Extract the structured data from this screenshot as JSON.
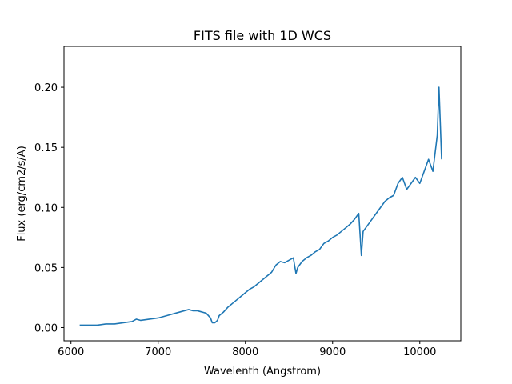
{
  "chart_data": {
    "type": "line",
    "title": "FITS file with 1D WCS",
    "xlabel": "Wavelenth (Angstrom)",
    "ylabel": "Flux (erg/cm2/s/A)",
    "xlim": [
      5920,
      10470
    ],
    "ylim": [
      -0.011,
      0.234
    ],
    "xticks": [
      6000,
      7000,
      8000,
      9000,
      10000
    ],
    "xtick_labels": [
      "6000",
      "7000",
      "8000",
      "9000",
      "10000"
    ],
    "yticks": [
      0.0,
      0.05,
      0.1,
      0.15,
      0.2
    ],
    "ytick_labels": [
      "0.00",
      "0.05",
      "0.10",
      "0.15",
      "0.20"
    ],
    "grid": false,
    "legend": "none",
    "series": [
      {
        "color": "#1f77b4",
        "x": [
          6100,
          6200,
          6300,
          6400,
          6500,
          6600,
          6700,
          6750,
          6800,
          6900,
          7000,
          7100,
          7200,
          7300,
          7350,
          7400,
          7450,
          7500,
          7550,
          7600,
          7620,
          7650,
          7680,
          7700,
          7750,
          7800,
          7850,
          7900,
          7950,
          8000,
          8050,
          8100,
          8150,
          8200,
          8250,
          8300,
          8350,
          8400,
          8450,
          8500,
          8550,
          8580,
          8600,
          8650,
          8700,
          8750,
          8800,
          8850,
          8900,
          8950,
          9000,
          9050,
          9100,
          9150,
          9200,
          9250,
          9300,
          9330,
          9350,
          9400,
          9450,
          9500,
          9550,
          9600,
          9650,
          9700,
          9750,
          9800,
          9850,
          9900,
          9950,
          10000,
          10050,
          10100,
          10150,
          10200,
          10220,
          10250
        ],
        "y": [
          0.002,
          0.002,
          0.002,
          0.003,
          0.003,
          0.004,
          0.005,
          0.007,
          0.006,
          0.007,
          0.008,
          0.01,
          0.012,
          0.014,
          0.015,
          0.014,
          0.014,
          0.013,
          0.012,
          0.008,
          0.004,
          0.004,
          0.006,
          0.01,
          0.013,
          0.017,
          0.02,
          0.023,
          0.026,
          0.029,
          0.032,
          0.034,
          0.037,
          0.04,
          0.043,
          0.046,
          0.052,
          0.055,
          0.054,
          0.056,
          0.058,
          0.045,
          0.05,
          0.055,
          0.058,
          0.06,
          0.063,
          0.065,
          0.07,
          0.072,
          0.075,
          0.077,
          0.08,
          0.083,
          0.086,
          0.09,
          0.095,
          0.06,
          0.08,
          0.085,
          0.09,
          0.095,
          0.1,
          0.105,
          0.108,
          0.11,
          0.12,
          0.125,
          0.115,
          0.12,
          0.125,
          0.12,
          0.13,
          0.14,
          0.13,
          0.16,
          0.2,
          0.14
        ]
      }
    ]
  }
}
